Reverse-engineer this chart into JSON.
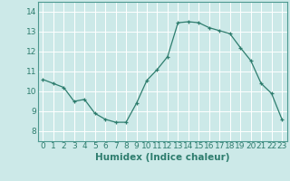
{
  "x": [
    0,
    1,
    2,
    3,
    4,
    5,
    6,
    7,
    8,
    9,
    10,
    11,
    12,
    13,
    14,
    15,
    16,
    17,
    18,
    19,
    20,
    21,
    22,
    23
  ],
  "y": [
    10.6,
    10.4,
    10.2,
    9.5,
    9.6,
    8.9,
    8.6,
    8.45,
    8.45,
    9.4,
    10.55,
    11.1,
    11.75,
    13.45,
    13.5,
    13.45,
    13.2,
    13.05,
    12.9,
    12.2,
    11.55,
    10.4,
    9.9,
    8.6
  ],
  "xlabel": "Humidex (Indice chaleur)",
  "xlim": [
    -0.5,
    23.5
  ],
  "ylim": [
    7.5,
    14.5
  ],
  "yticks": [
    8,
    9,
    10,
    11,
    12,
    13,
    14
  ],
  "xticks": [
    0,
    1,
    2,
    3,
    4,
    5,
    6,
    7,
    8,
    9,
    10,
    11,
    12,
    13,
    14,
    15,
    16,
    17,
    18,
    19,
    20,
    21,
    22,
    23
  ],
  "line_color": "#2e7d6e",
  "marker": "+",
  "bg_color": "#cce9e8",
  "grid_color": "#ffffff",
  "axis_color": "#4d9990",
  "tick_fontsize": 6.5,
  "xlabel_fontsize": 7.5
}
